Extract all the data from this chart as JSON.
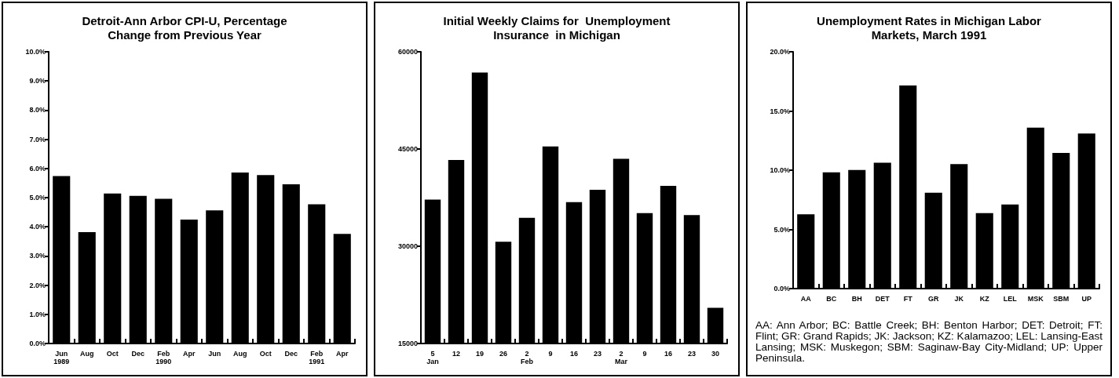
{
  "chart_data": [
    {
      "type": "bar",
      "title": "Detroit-Ann Arbor CPI-U, Percentage\nChange from Previous Year",
      "categories": [
        "Jun\n1989",
        "Aug",
        "Oct",
        "Dec",
        "Feb\n1990",
        "Apr",
        "Jun",
        "Aug",
        "Oct",
        "Dec",
        "Feb\n1991",
        "Apr"
      ],
      "values": [
        5.74,
        3.82,
        5.14,
        5.06,
        4.96,
        4.25,
        4.56,
        5.86,
        5.77,
        5.46,
        4.77,
        3.76
      ],
      "color": "#000000",
      "ylim": [
        0,
        10
      ],
      "yticks": [
        {
          "value": 0,
          "label": "0.0%"
        },
        {
          "value": 1,
          "label": "1.0%"
        },
        {
          "value": 2,
          "label": "2.0%"
        },
        {
          "value": 3,
          "label": "3.0%"
        },
        {
          "value": 4,
          "label": "4.0%"
        },
        {
          "value": 5,
          "label": "5.0%"
        },
        {
          "value": 6,
          "label": "6.0%"
        },
        {
          "value": 7,
          "label": "7.0%"
        },
        {
          "value": 8,
          "label": "8.0%"
        },
        {
          "value": 9,
          "label": "9.0%"
        },
        {
          "value": 10,
          "label": "10.0%"
        }
      ],
      "grid": false
    },
    {
      "type": "bar",
      "title": "Initial Weekly Claims for  Unemployment\nInsurance  in Michigan",
      "categories": [
        "5\nJan",
        "12",
        "19",
        "26",
        "2\nFeb",
        "9",
        "16",
        "23",
        "2\nMar",
        "9",
        "16",
        "23",
        "30"
      ],
      "values": [
        37200,
        43300,
        56800,
        30700,
        34400,
        45400,
        36800,
        38700,
        43500,
        35100,
        39300,
        34800,
        20500
      ],
      "color": "#000000",
      "ylim": [
        15000,
        60000
      ],
      "yticks": [
        15000,
        30000,
        45000,
        60000
      ],
      "grid": false
    },
    {
      "type": "bar",
      "title": "Unemployment Rates in Michigan Labor\nMarkets, March 1991",
      "categories": [
        "AA",
        "BC",
        "BH",
        "DET",
        "FT",
        "GR",
        "JK",
        "KZ",
        "LEL",
        "MSK",
        "SBM",
        "UP"
      ],
      "values": [
        6.28,
        9.81,
        10.02,
        10.63,
        17.15,
        8.1,
        10.51,
        6.37,
        7.1,
        13.6,
        11.46,
        13.09
      ],
      "color": "#000000",
      "ylim": [
        0,
        20
      ],
      "yticks": [
        {
          "value": 0,
          "label": "0.0%"
        },
        {
          "value": 5,
          "label": "5.0%"
        },
        {
          "value": 10,
          "label": "10.0%"
        },
        {
          "value": 15,
          "label": "15.0%"
        },
        {
          "value": 20,
          "label": "20.0%"
        }
      ],
      "grid": false,
      "annotations": [
        "AA: Ann Arbor; BC: Battle Creek; BH: Benton Harbor; DET: Detroit; FT: Flint; GR: Grand Rapids; JK: Jackson; KZ: Kalamazoo; LEL: Lansing-East Lansing; MSK: Muskegon; SBM: Saginaw-Bay City-Midland; UP: Upper Peninsula."
      ]
    }
  ]
}
